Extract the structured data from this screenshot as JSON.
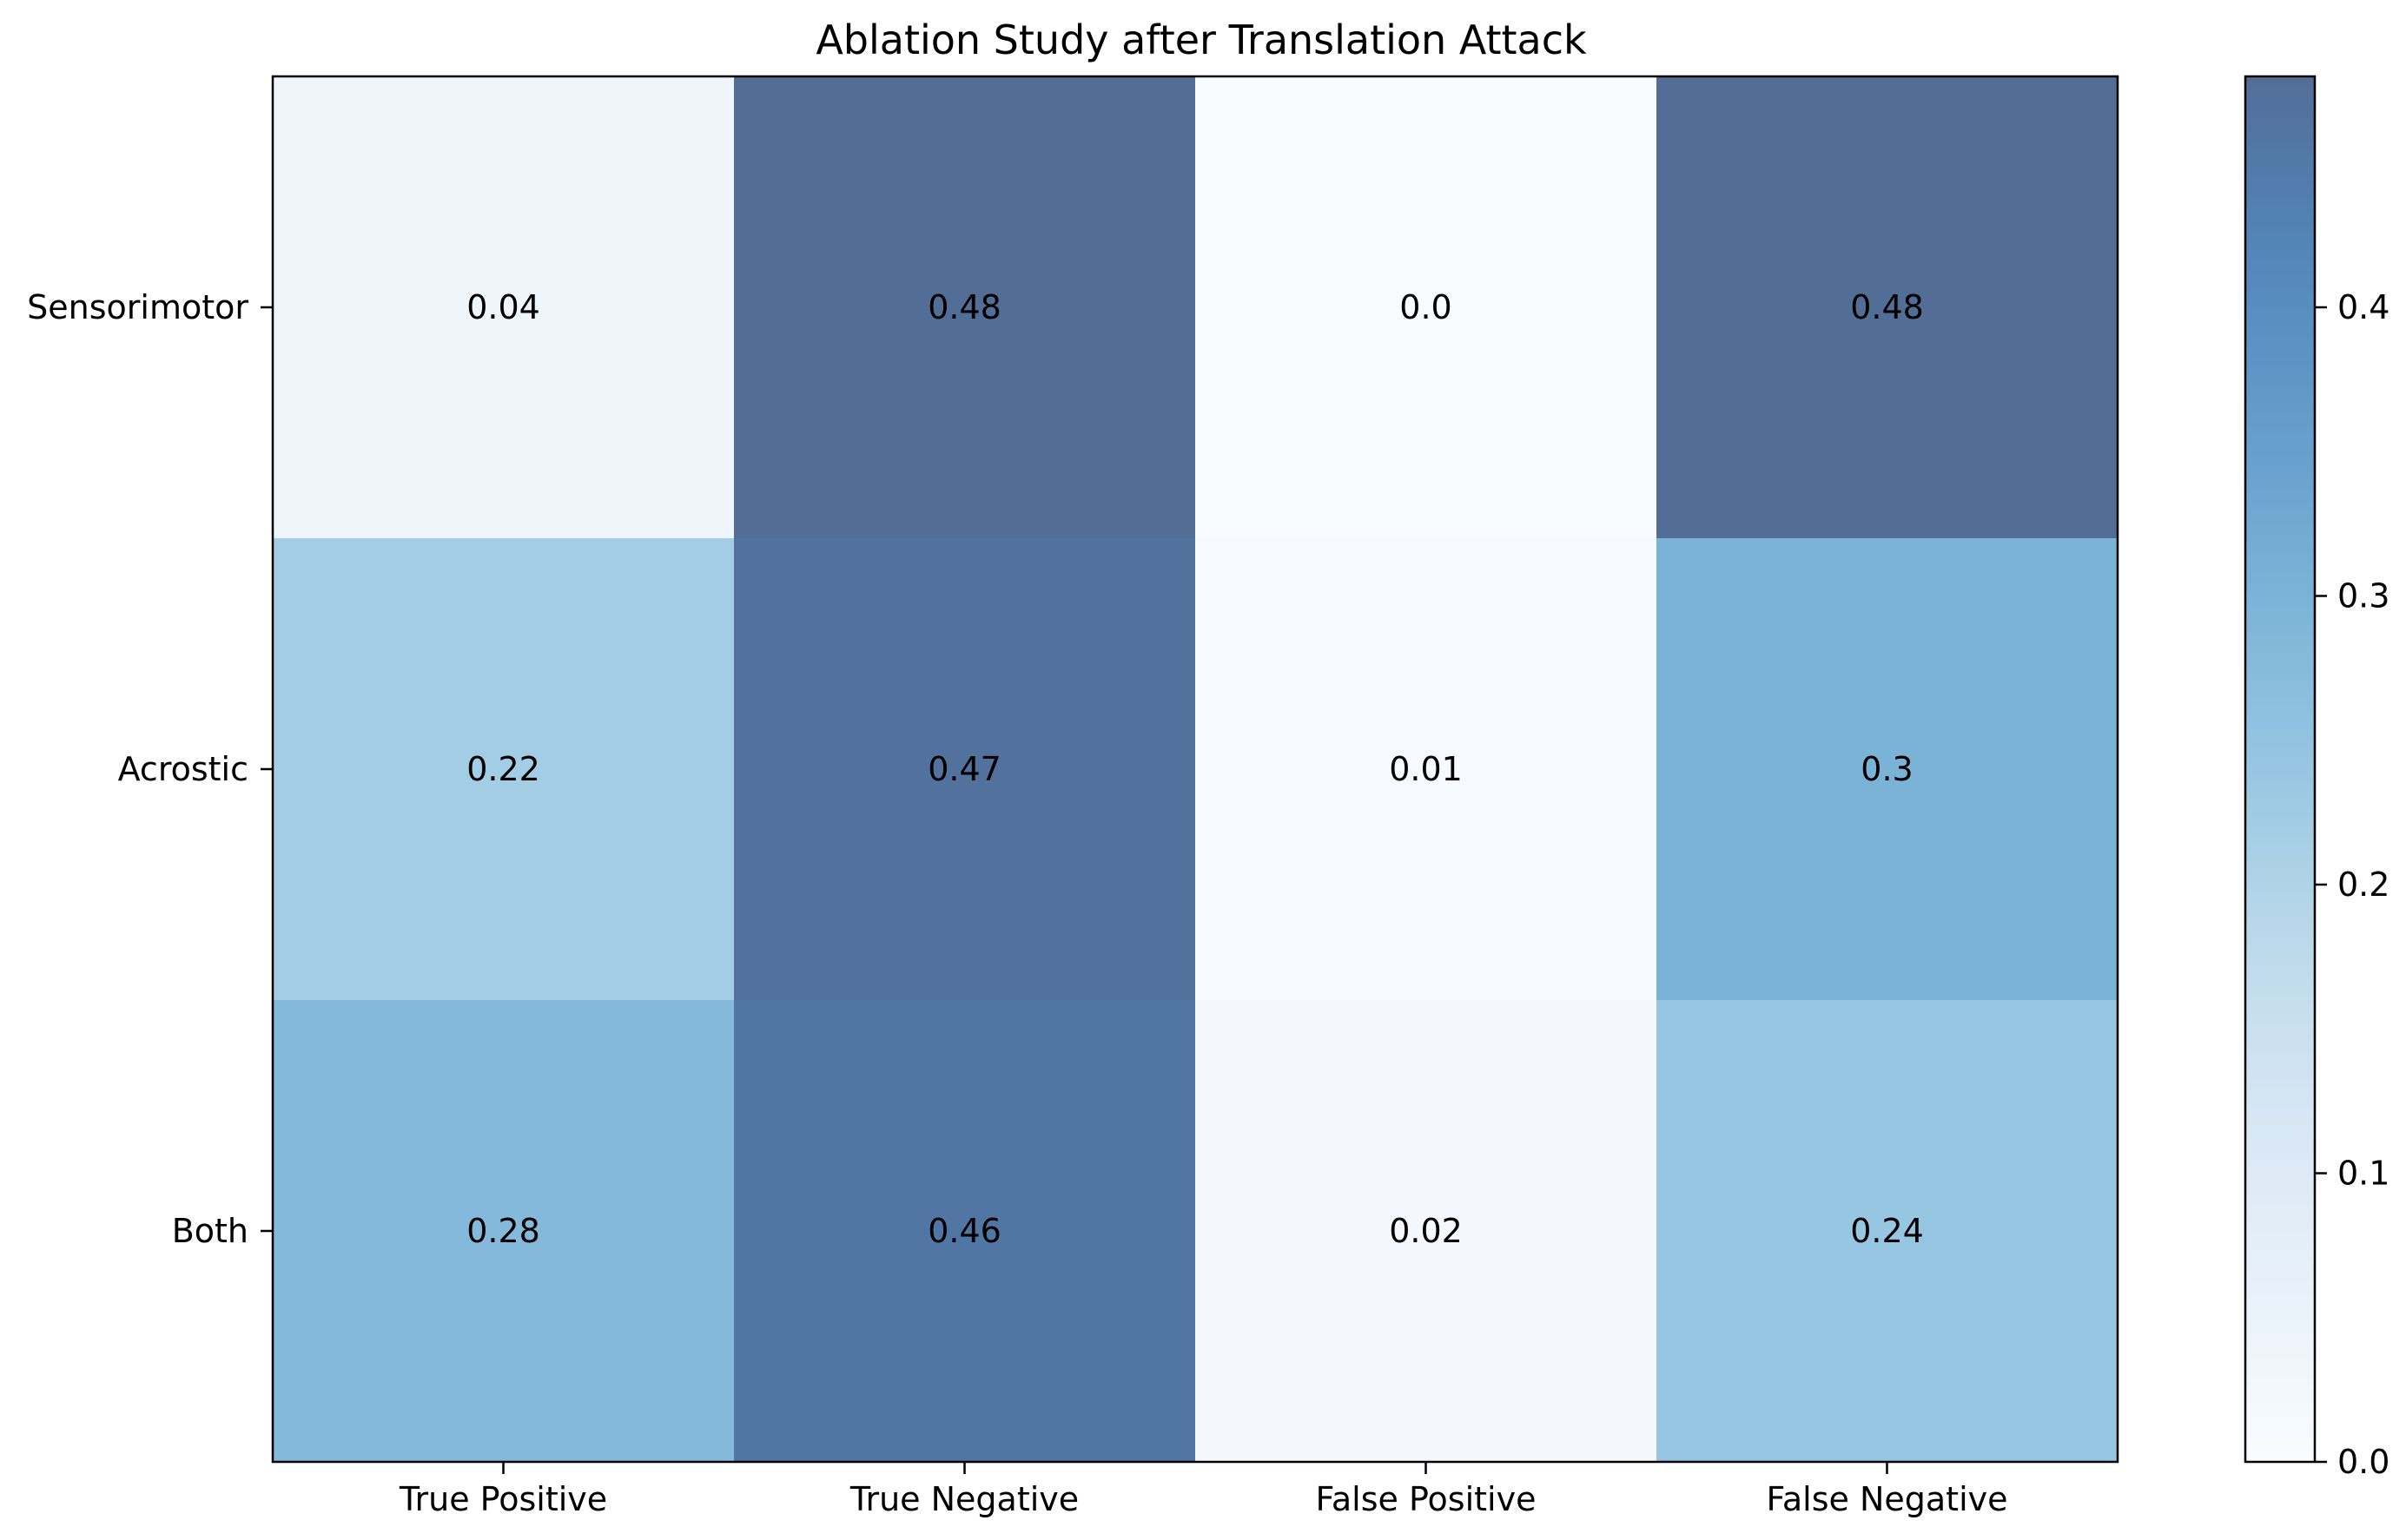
{
  "chart_data": {
    "type": "heatmap",
    "title": "Ablation Study after Translation Attack",
    "xlabel": "",
    "ylabel": "",
    "columns": [
      "True Positive",
      "True Negative",
      "False Positive",
      "False Negative"
    ],
    "rows": [
      "Sensorimotor",
      "Acrostic",
      "Both"
    ],
    "values": [
      [
        0.04,
        0.48,
        0.0,
        0.48
      ],
      [
        0.22,
        0.47,
        0.01,
        0.3
      ],
      [
        0.28,
        0.46,
        0.02,
        0.24
      ]
    ],
    "value_labels": [
      [
        "0.04",
        "0.48",
        "0.0",
        "0.48"
      ],
      [
        "0.22",
        "0.47",
        "0.01",
        "0.3"
      ],
      [
        "0.28",
        "0.46",
        "0.02",
        "0.24"
      ]
    ],
    "colorbar": {
      "range": [
        0.0,
        0.48
      ],
      "ticks": [
        0.0,
        0.1,
        0.2,
        0.3,
        0.4
      ],
      "tick_labels": [
        "0.0",
        "0.1",
        "0.2",
        "0.3",
        "0.4"
      ]
    },
    "colormap": "Blues",
    "alpha": 0.7,
    "grid": false,
    "legend": "none"
  }
}
